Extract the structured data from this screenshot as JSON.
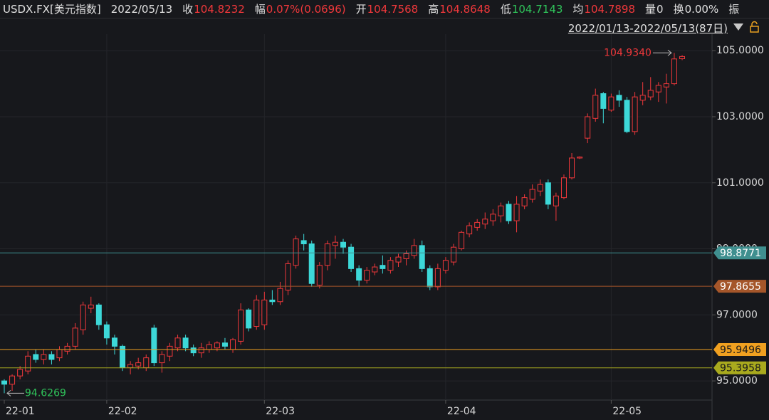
{
  "header": {
    "symbol": "USDX.FX[美元指数]",
    "date": "2022/05/13",
    "items": [
      {
        "label": "收",
        "value": "104.8232",
        "color": "#f0383b"
      },
      {
        "label": "幅",
        "value": "0.07%(0.0696)",
        "color": "#f0383b"
      },
      {
        "label": "开",
        "value": "104.7568",
        "color": "#f0383b"
      },
      {
        "label": "高",
        "value": "104.8648",
        "color": "#f0383b"
      },
      {
        "label": "低",
        "value": "104.7143",
        "color": "#2fc35a"
      },
      {
        "label": "均",
        "value": "104.7898",
        "color": "#f0383b"
      },
      {
        "label": "量",
        "value": "0",
        "color": "#e0e0e0"
      },
      {
        "label": "换",
        "value": "0.00%",
        "color": "#e0e0e0"
      },
      {
        "label": "振",
        "value": "",
        "color": "#e0e0e0"
      }
    ],
    "range": "2022/01/13-2022/05/13(87日)"
  },
  "chart_data": {
    "type": "candlestick",
    "open": [
      95.0,
      94.9,
      95.15,
      95.3,
      95.8,
      95.65,
      95.8,
      95.7,
      95.9,
      96.05,
      96.55,
      97.2,
      97.3,
      96.7,
      96.3,
      96.05,
      95.4,
      95.45,
      95.4,
      96.6,
      95.55,
      95.75,
      96.0,
      96.3,
      96.0,
      95.85,
      95.95,
      96.0,
      96.15,
      95.95,
      96.2,
      97.15,
      96.65,
      96.7,
      97.45,
      97.4,
      97.75,
      98.5,
      99.25,
      99.15,
      97.9,
      98.5,
      99.1,
      99.2,
      99.05,
      98.4,
      98.05,
      98.3,
      98.5,
      98.35,
      98.6,
      98.7,
      98.8,
      99.1,
      98.4,
      97.85,
      98.35,
      98.6,
      99.0,
      99.45,
      99.65,
      99.75,
      99.85,
      100.0,
      100.35,
      99.85,
      100.3,
      100.5,
      100.75,
      101.0,
      100.3,
      100.55,
      101.15,
      101.75,
      102.35,
      102.95,
      103.7,
      103.2,
      103.65,
      103.5,
      102.55,
      103.5,
      103.6,
      103.75,
      103.9,
      104.0,
      104.7568
    ],
    "high": [
      95.05,
      95.2,
      95.45,
      95.9,
      95.95,
      95.95,
      95.9,
      96.05,
      96.15,
      96.75,
      97.4,
      97.55,
      97.35,
      96.8,
      96.4,
      96.1,
      95.6,
      95.7,
      95.8,
      96.7,
      95.9,
      96.15,
      96.4,
      96.4,
      96.1,
      96.15,
      96.2,
      96.2,
      96.3,
      96.3,
      97.35,
      97.2,
      97.6,
      97.7,
      97.75,
      98.0,
      98.65,
      99.4,
      99.45,
      99.25,
      98.6,
      99.25,
      99.4,
      99.3,
      99.15,
      98.5,
      98.45,
      98.55,
      98.8,
      98.75,
      98.85,
      98.95,
      99.3,
      99.25,
      98.5,
      98.55,
      98.75,
      99.15,
      99.55,
      99.8,
      99.9,
      100.1,
      100.2,
      100.4,
      100.45,
      100.6,
      100.65,
      100.95,
      101.1,
      101.1,
      100.7,
      101.25,
      101.9,
      101.8,
      103.1,
      103.85,
      103.75,
      103.7,
      103.8,
      103.6,
      103.75,
      104.05,
      104.2,
      104.05,
      104.3,
      104.934,
      104.8648
    ],
    "low": [
      94.6269,
      94.7,
      95.05,
      95.2,
      95.55,
      95.5,
      95.5,
      95.6,
      95.8,
      95.95,
      96.4,
      97.05,
      96.55,
      96.1,
      95.8,
      95.3,
      95.2,
      95.35,
      95.3,
      95.45,
      95.25,
      95.6,
      95.9,
      95.9,
      95.75,
      95.7,
      95.85,
      95.9,
      95.95,
      95.85,
      96.1,
      96.5,
      96.55,
      96.55,
      97.3,
      97.3,
      97.6,
      98.4,
      98.95,
      97.85,
      97.8,
      98.35,
      98.7,
      98.85,
      98.3,
      97.85,
      97.95,
      98.2,
      98.25,
      98.25,
      98.45,
      98.5,
      98.7,
      98.3,
      97.75,
      97.75,
      98.25,
      98.5,
      98.95,
      99.35,
      99.55,
      99.6,
      99.7,
      99.8,
      99.75,
      99.5,
      100.2,
      100.4,
      100.6,
      100.2,
      99.85,
      100.5,
      101.1,
      101.72,
      102.2,
      102.85,
      102.8,
      103.15,
      103.3,
      102.5,
      102.45,
      103.35,
      103.5,
      103.45,
      103.4,
      103.95,
      104.7143
    ],
    "close": [
      94.9,
      95.15,
      95.35,
      95.75,
      95.65,
      95.8,
      95.65,
      95.95,
      96.05,
      96.6,
      97.3,
      97.3,
      96.7,
      96.3,
      96.05,
      95.4,
      95.5,
      95.55,
      95.7,
      95.55,
      95.8,
      96.05,
      96.3,
      96.0,
      95.85,
      96.0,
      96.1,
      96.15,
      96.05,
      96.25,
      97.15,
      96.6,
      97.45,
      97.45,
      97.4,
      97.8,
      98.55,
      99.3,
      99.15,
      97.95,
      98.5,
      99.15,
      99.2,
      99.05,
      98.4,
      98.05,
      98.35,
      98.45,
      98.4,
      98.65,
      98.75,
      98.85,
      99.1,
      98.4,
      97.85,
      98.4,
      98.65,
      99.05,
      99.5,
      99.7,
      99.8,
      99.9,
      100.05,
      100.3,
      99.85,
      100.35,
      100.55,
      100.8,
      100.95,
      100.35,
      100.6,
      101.15,
      101.75,
      101.78,
      103.0,
      103.65,
      103.25,
      103.6,
      103.5,
      102.55,
      103.6,
      103.65,
      103.8,
      103.95,
      104.0,
      104.75,
      104.8232
    ],
    "up_color": "#f0383b",
    "down_color": "#3dd8d8",
    "ylim": [
      94.42,
      105.5
    ],
    "yticks": [
      {
        "value": 95,
        "label": "95.0000"
      },
      {
        "value": 97,
        "label": "97.0000"
      },
      {
        "value": 99,
        "label": "99.0000"
      },
      {
        "value": 101,
        "label": "101.0000"
      },
      {
        "value": 103,
        "label": "103.0000"
      },
      {
        "value": 105,
        "label": "105.0000"
      }
    ],
    "xticks": [
      {
        "value": 0,
        "label": "22-01"
      },
      {
        "value": 13,
        "label": "22-02"
      },
      {
        "value": 33,
        "label": "22-03"
      },
      {
        "value": 56,
        "label": "22-04"
      },
      {
        "value": 77,
        "label": "22-05"
      }
    ],
    "levels": [
      {
        "value": 98.8771,
        "color": "#3f8f8f",
        "text_color": "#ffffff"
      },
      {
        "value": 97.8655,
        "color": "#a5562a",
        "text_color": "#ffffff"
      },
      {
        "value": 95.9496,
        "color": "#f0a020",
        "text_color": "#1a1a1a"
      },
      {
        "value": 95.3958,
        "color": "#a9aa1e",
        "text_color": "#1a1a1a"
      }
    ],
    "max_label": "104.9340",
    "min_label": "94.6269",
    "max_color": "#f0383b",
    "min_color": "#2fc35a"
  }
}
